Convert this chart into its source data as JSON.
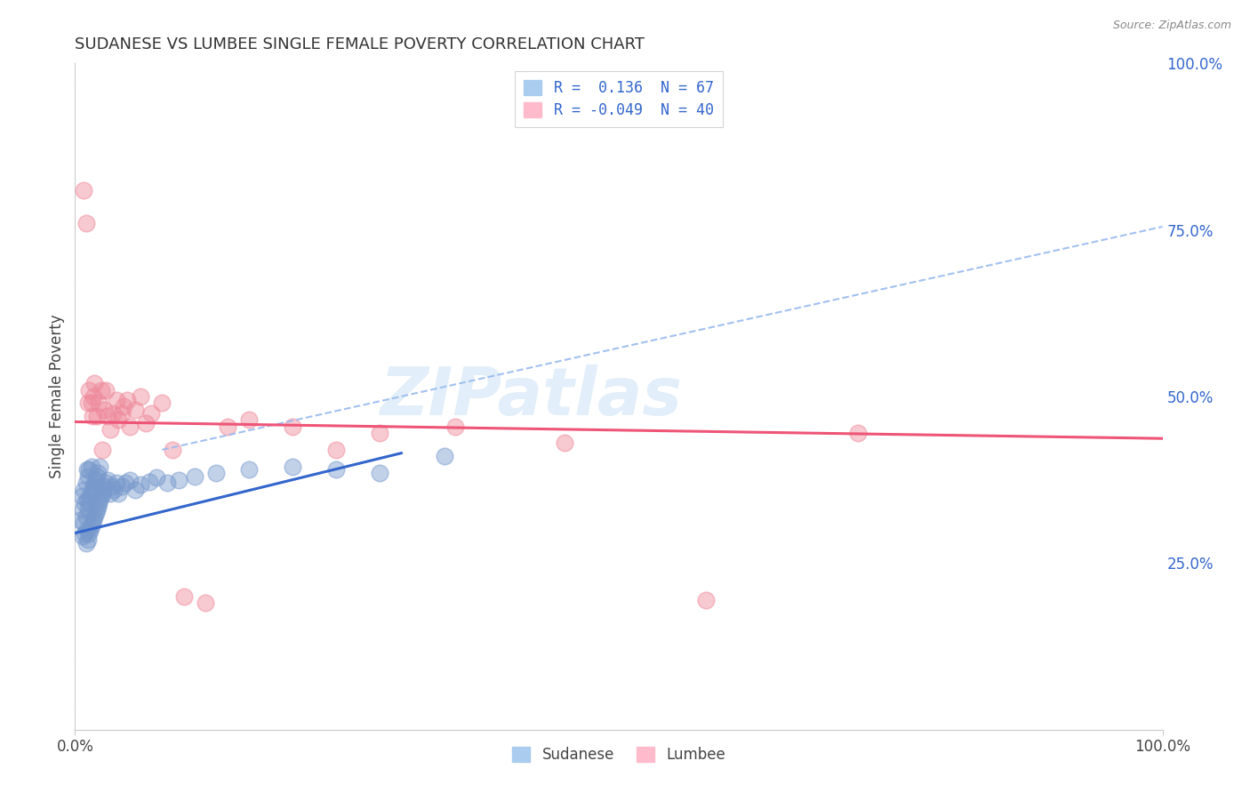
{
  "title": "SUDANESE VS LUMBEE SINGLE FEMALE POVERTY CORRELATION CHART",
  "source": "Source: ZipAtlas.com",
  "ylabel": "Single Female Poverty",
  "xlim": [
    0.0,
    1.0
  ],
  "ylim": [
    0.0,
    1.0
  ],
  "xtick_labels": [
    "0.0%",
    "100.0%"
  ],
  "xtick_positions": [
    0.0,
    1.0
  ],
  "ytick_labels_right": [
    "100.0%",
    "75.0%",
    "50.0%",
    "25.0%"
  ],
  "ytick_positions_right": [
    1.0,
    0.75,
    0.5,
    0.25
  ],
  "background_color": "#ffffff",
  "grid_color": "#cccccc",
  "sudanese_scatter_color": "#7799cc",
  "lumbee_scatter_color": "#ee8899",
  "sudanese_line_color": "#3366cc",
  "lumbee_line_color": "#ee5577",
  "dashed_line_color": "#99bbee",
  "right_tick_color": "#3366cc",
  "R_sudanese": 0.136,
  "N_sudanese": 67,
  "R_lumbee": -0.049,
  "N_lumbee": 40,
  "watermark": "ZIPatlas",
  "legend_label_1": "R =  0.136  N = 67",
  "legend_label_2": "R = -0.049  N = 40",
  "blue_line_x0": 0.0,
  "blue_line_y0": 0.295,
  "blue_line_x1": 0.3,
  "blue_line_y1": 0.415,
  "pink_line_x0": 0.0,
  "pink_line_y0": 0.462,
  "pink_line_x1": 1.0,
  "pink_line_y1": 0.437,
  "dashed_line_x0": 0.08,
  "dashed_line_y0": 0.42,
  "dashed_line_x1": 1.0,
  "dashed_line_y1": 0.755,
  "sudanese_x": [
    0.005,
    0.006,
    0.007,
    0.007,
    0.008,
    0.008,
    0.009,
    0.009,
    0.01,
    0.01,
    0.01,
    0.011,
    0.011,
    0.011,
    0.012,
    0.012,
    0.012,
    0.013,
    0.013,
    0.013,
    0.014,
    0.014,
    0.015,
    0.015,
    0.015,
    0.016,
    0.016,
    0.017,
    0.017,
    0.018,
    0.018,
    0.019,
    0.019,
    0.02,
    0.02,
    0.021,
    0.021,
    0.022,
    0.023,
    0.023,
    0.024,
    0.025,
    0.026,
    0.027,
    0.028,
    0.03,
    0.032,
    0.034,
    0.036,
    0.038,
    0.04,
    0.043,
    0.046,
    0.05,
    0.055,
    0.06,
    0.068,
    0.075,
    0.085,
    0.095,
    0.11,
    0.13,
    0.16,
    0.2,
    0.24,
    0.28,
    0.34
  ],
  "sudanese_y": [
    0.315,
    0.35,
    0.29,
    0.33,
    0.31,
    0.36,
    0.295,
    0.34,
    0.28,
    0.32,
    0.37,
    0.3,
    0.345,
    0.39,
    0.285,
    0.33,
    0.38,
    0.295,
    0.34,
    0.39,
    0.3,
    0.35,
    0.305,
    0.355,
    0.395,
    0.31,
    0.36,
    0.315,
    0.365,
    0.32,
    0.37,
    0.325,
    0.375,
    0.33,
    0.38,
    0.335,
    0.385,
    0.34,
    0.345,
    0.395,
    0.35,
    0.355,
    0.36,
    0.365,
    0.37,
    0.375,
    0.355,
    0.365,
    0.36,
    0.37,
    0.355,
    0.365,
    0.37,
    0.375,
    0.36,
    0.368,
    0.372,
    0.378,
    0.37,
    0.375,
    0.38,
    0.385,
    0.39,
    0.395,
    0.39,
    0.385,
    0.41
  ],
  "lumbee_x": [
    0.008,
    0.01,
    0.012,
    0.013,
    0.015,
    0.016,
    0.017,
    0.018,
    0.02,
    0.022,
    0.024,
    0.025,
    0.027,
    0.028,
    0.03,
    0.032,
    0.035,
    0.038,
    0.04,
    0.043,
    0.045,
    0.048,
    0.05,
    0.055,
    0.06,
    0.065,
    0.07,
    0.08,
    0.09,
    0.1,
    0.12,
    0.14,
    0.16,
    0.2,
    0.24,
    0.28,
    0.35,
    0.45,
    0.58,
    0.72
  ],
  "lumbee_y": [
    0.81,
    0.76,
    0.49,
    0.51,
    0.49,
    0.47,
    0.5,
    0.52,
    0.47,
    0.49,
    0.51,
    0.42,
    0.48,
    0.51,
    0.47,
    0.45,
    0.475,
    0.495,
    0.465,
    0.475,
    0.485,
    0.495,
    0.455,
    0.48,
    0.5,
    0.46,
    0.475,
    0.49,
    0.42,
    0.2,
    0.19,
    0.455,
    0.465,
    0.455,
    0.42,
    0.445,
    0.455,
    0.43,
    0.195,
    0.445
  ]
}
